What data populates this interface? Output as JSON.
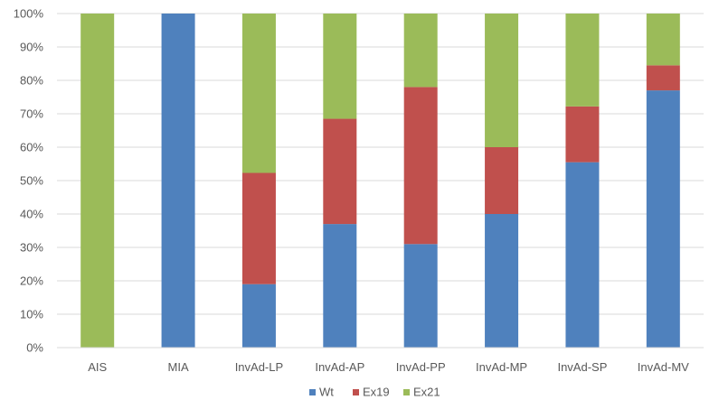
{
  "chart_data": {
    "type": "bar",
    "stacked": true,
    "categories": [
      "AIS",
      "MIA",
      "InvAd-LP",
      "InvAd-AP",
      "InvAd-PP",
      "InvAd-MP",
      "InvAd-SP",
      "InvAd-MV"
    ],
    "series": [
      {
        "name": "Wt",
        "color": "#4f81bd",
        "values": [
          0,
          100,
          19.0,
          37.0,
          31.0,
          40.0,
          55.5,
          77.0
        ]
      },
      {
        "name": "Ex19",
        "color": "#c0504d",
        "values": [
          0,
          0,
          33.3,
          31.5,
          47.0,
          20.0,
          16.7,
          7.5
        ]
      },
      {
        "name": "Ex21",
        "color": "#9bbb59",
        "values": [
          100,
          0,
          47.7,
          31.5,
          22.0,
          40.0,
          27.8,
          15.5
        ]
      }
    ],
    "ylim": [
      0,
      100
    ],
    "yticks": [
      "0%",
      "10%",
      "20%",
      "30%",
      "40%",
      "50%",
      "60%",
      "70%",
      "80%",
      "90%",
      "100%"
    ],
    "grid": true,
    "legend": {
      "position": "bottom",
      "labels": [
        "Wt",
        "Ex19",
        "Ex21"
      ]
    }
  }
}
